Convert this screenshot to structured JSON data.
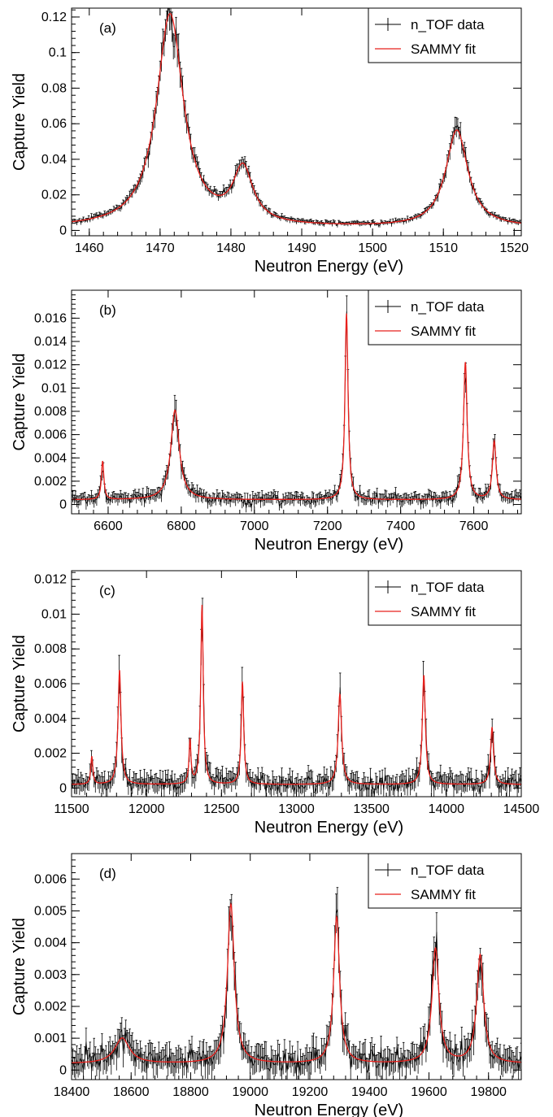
{
  "colors": {
    "data": "#000000",
    "fit": "#e8201c",
    "frame": "#000000"
  },
  "chart_data": [
    {
      "type": "line",
      "panel_label": "(a)",
      "xlabel": "Neutron Energy (eV)",
      "ylabel": "Capture Yield",
      "xlim": [
        1457.5,
        1521
      ],
      "ylim": [
        -0.003,
        0.125
      ],
      "xticks": [
        1460,
        1470,
        1480,
        1490,
        1500,
        1510,
        1520
      ],
      "xtick_labels": [
        "1460",
        "1470",
        "1480",
        "1490",
        "1500",
        "1510",
        "1520"
      ],
      "yticks": [
        0,
        0.02,
        0.04,
        0.06,
        0.08,
        0.1,
        0.12
      ],
      "ytick_labels": [
        "0",
        "0.02",
        "0.04",
        "0.06",
        "0.08",
        "0.1",
        "0.12"
      ],
      "legend": {
        "placement": "top-right",
        "entries": [
          "n_TOF data",
          "SAMMY fit"
        ]
      },
      "grid": false,
      "baseline": 0.0015,
      "noise": 0.0012,
      "peaks": [
        {
          "x": 1471.4,
          "height": 0.1195,
          "width": 2.3
        },
        {
          "x": 1481.7,
          "height": 0.0305,
          "width": 1.7
        },
        {
          "x": 1511.9,
          "height": 0.0545,
          "width": 1.9
        }
      ],
      "series": [
        {
          "name": "n_TOF data"
        },
        {
          "name": "SAMMY fit"
        }
      ]
    },
    {
      "type": "line",
      "panel_label": "(b)",
      "xlabel": "Neutron Energy (eV)",
      "ylabel": "Capture Yield",
      "xlim": [
        6500,
        7730
      ],
      "ylim": [
        -0.0008,
        0.0184
      ],
      "xticks": [
        6600,
        6800,
        7000,
        7200,
        7400,
        7600
      ],
      "xtick_labels": [
        "6600",
        "6800",
        "7000",
        "7200",
        "7400",
        "7600"
      ],
      "yticks": [
        0,
        0.002,
        0.004,
        0.006,
        0.008,
        0.01,
        0.012,
        0.014,
        0.016
      ],
      "ytick_labels": [
        "0",
        "0.002",
        "0.004",
        "0.006",
        "0.008",
        "0.01",
        "0.012",
        "0.014",
        "0.016"
      ],
      "legend": {
        "placement": "top-right",
        "entries": [
          "n_TOF data",
          "SAMMY fit"
        ]
      },
      "grid": false,
      "baseline": 0.0004,
      "noise": 0.0007,
      "peaks": [
        {
          "x": 6585,
          "height": 0.0033,
          "width": 4
        },
        {
          "x": 6783,
          "height": 0.0077,
          "width": 14
        },
        {
          "x": 7252,
          "height": 0.016,
          "width": 5
        },
        {
          "x": 7577,
          "height": 0.0118,
          "width": 6
        },
        {
          "x": 7656,
          "height": 0.005,
          "width": 6
        }
      ],
      "series": [
        {
          "name": "n_TOF data"
        },
        {
          "name": "SAMMY fit"
        }
      ]
    },
    {
      "type": "line",
      "panel_label": "(c)",
      "xlabel": "Neutron Energy (eV)",
      "ylabel": "Capture Yield",
      "xlim": [
        11500,
        14500
      ],
      "ylim": [
        -0.0005,
        0.0125
      ],
      "xticks": [
        11500,
        12000,
        12500,
        13000,
        13500,
        14000,
        14500
      ],
      "xtick_labels": [
        "11500",
        "12000",
        "12500",
        "13000",
        "13500",
        "14000",
        "14500"
      ],
      "yticks": [
        0,
        0.002,
        0.004,
        0.006,
        0.008,
        0.01,
        0.012
      ],
      "ytick_labels": [
        "0",
        "0.002",
        "0.004",
        "0.006",
        "0.008",
        "0.01",
        "0.012"
      ],
      "legend": {
        "placement": "top-right",
        "entries": [
          "n_TOF data",
          "SAMMY fit"
        ]
      },
      "grid": false,
      "baseline": 0.0002,
      "noise": 0.0008,
      "peaks": [
        {
          "x": 11635,
          "height": 0.0016,
          "width": 8
        },
        {
          "x": 11820,
          "height": 0.0066,
          "width": 12
        },
        {
          "x": 12290,
          "height": 0.0025,
          "width": 8
        },
        {
          "x": 12370,
          "height": 0.0103,
          "width": 10
        },
        {
          "x": 12640,
          "height": 0.0059,
          "width": 10
        },
        {
          "x": 13290,
          "height": 0.0052,
          "width": 14
        },
        {
          "x": 13850,
          "height": 0.0063,
          "width": 12
        },
        {
          "x": 14305,
          "height": 0.0033,
          "width": 12
        }
      ],
      "series": [
        {
          "name": "n_TOF data"
        },
        {
          "name": "SAMMY fit"
        }
      ]
    },
    {
      "type": "line",
      "panel_label": "(d)",
      "xlabel": "Neutron Energy (eV)",
      "ylabel": "Capture Yield",
      "xlim": [
        18400,
        19910
      ],
      "ylim": [
        -0.0003,
        0.0068
      ],
      "xticks": [
        18400,
        18600,
        18800,
        19000,
        19200,
        19400,
        19600,
        19800
      ],
      "xtick_labels": [
        "18400",
        "18600",
        "18800",
        "19000",
        "19200",
        "19400",
        "19600",
        "19800"
      ],
      "yticks": [
        0,
        0.001,
        0.002,
        0.003,
        0.004,
        0.005,
        0.006
      ],
      "ytick_labels": [
        "0",
        "0.001",
        "0.002",
        "0.003",
        "0.004",
        "0.005",
        "0.006"
      ],
      "legend": {
        "placement": "top-right",
        "entries": [
          "n_TOF data",
          "SAMMY fit"
        ]
      },
      "grid": false,
      "baseline": 0.0002,
      "noise": 0.0006,
      "peaks": [
        {
          "x": 18570,
          "height": 0.0008,
          "width": 30
        },
        {
          "x": 18935,
          "height": 0.005,
          "width": 14
        },
        {
          "x": 19290,
          "height": 0.0046,
          "width": 12
        },
        {
          "x": 19622,
          "height": 0.0036,
          "width": 14
        },
        {
          "x": 19772,
          "height": 0.0034,
          "width": 14
        }
      ],
      "series": [
        {
          "name": "n_TOF data"
        },
        {
          "name": "SAMMY fit"
        }
      ]
    }
  ]
}
